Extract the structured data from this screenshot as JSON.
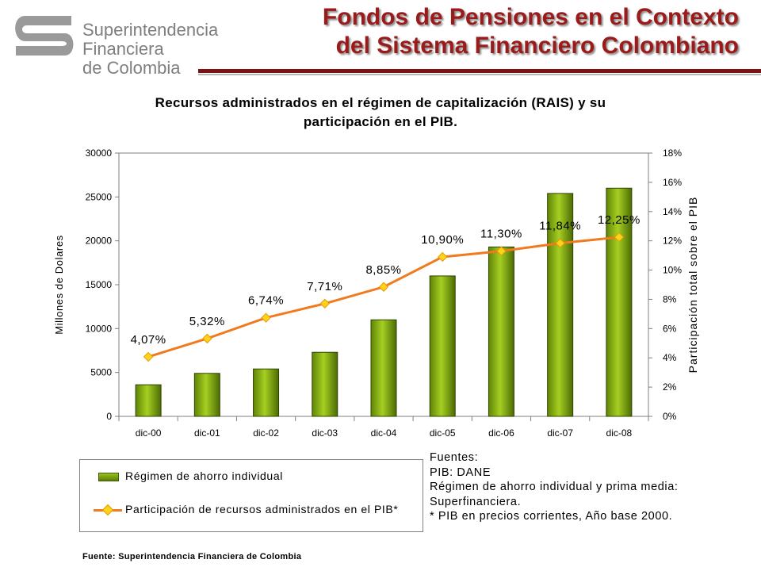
{
  "header": {
    "logo_lines": [
      "Superintendencia",
      "Financiera",
      "de Colombia"
    ],
    "title_lines": [
      "Fondos de Pensiones en el Contexto",
      "del Sistema Financiero Colombiano"
    ]
  },
  "chart_title_lines": [
    "Recursos administrados en el régimen de capitalización (RAIS) y su",
    "participación en el PIB."
  ],
  "chart_data": {
    "type": "bar",
    "categories": [
      "dic-00",
      "dic-01",
      "dic-02",
      "dic-03",
      "dic-04",
      "dic-05",
      "dic-06",
      "dic-07",
      "dic-08"
    ],
    "series": [
      {
        "name": "Régimen de ahorro individual",
        "type": "bar",
        "axis": "left",
        "values": [
          3600,
          4900,
          5400,
          7300,
          11000,
          16000,
          19300,
          25400,
          26000
        ]
      },
      {
        "name": "Participación de recursos administrados en el PIB*",
        "type": "line",
        "axis": "right",
        "values": [
          4.07,
          5.32,
          6.74,
          7.71,
          8.85,
          10.9,
          11.3,
          11.84,
          12.25
        ],
        "labels": [
          "4,07%",
          "5,32%",
          "6,74%",
          "7,71%",
          "8,85%",
          "10,90%",
          "11,30%",
          "11,84%",
          "12,25%"
        ]
      }
    ],
    "ylabel": "Millones de Dolares",
    "y2label": "Participación total sobre el PIB",
    "ylim": [
      0,
      30000
    ],
    "y2lim": [
      0,
      18
    ],
    "yticks": [
      "0",
      "5000",
      "10000",
      "15000",
      "20000",
      "25000",
      "30000"
    ],
    "y2ticks": [
      "0%",
      "2%",
      "4%",
      "6%",
      "8%",
      "10%",
      "12%",
      "14%",
      "16%",
      "18%"
    ],
    "grid": false,
    "legend": "bottom-left",
    "colors": {
      "bar": "#7aa511",
      "line": "#f07a1d",
      "marker": "#ffd21c"
    }
  },
  "notes": [
    "Fuentes:",
    "PIB: DANE",
    "Régimen de ahorro individual y prima media:",
    "Superfinanciera.",
    "* PIB en precios corrientes, Año base 2000."
  ],
  "footer": "Fuente:  Superintendencia Financiera de Colombia"
}
